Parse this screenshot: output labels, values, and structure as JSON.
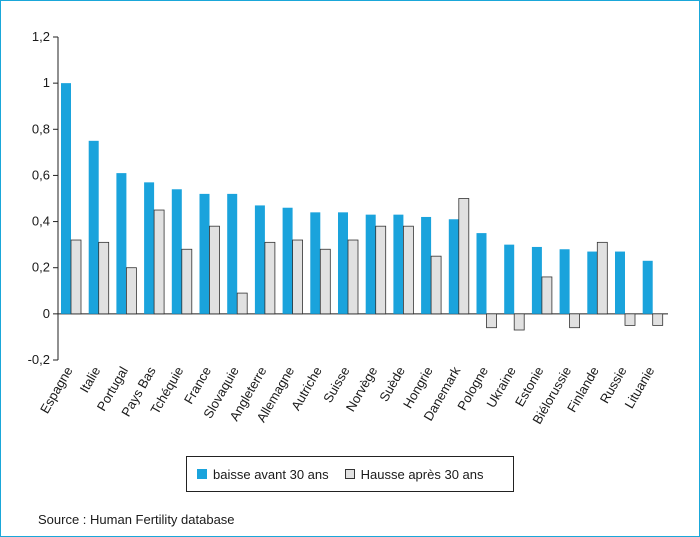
{
  "colors": {
    "series_a": "#1aa3dc",
    "series_b": "#e1e1e1",
    "series_b_stroke": "#333333",
    "frame": "#1aa7d9"
  },
  "chart_data": {
    "type": "bar",
    "title": "",
    "xlabel": "",
    "ylabel": "",
    "ylim": [
      -0.2,
      1.2
    ],
    "yticks": [
      -0.2,
      0,
      0.2,
      0.4,
      0.6,
      0.8,
      1,
      1.2
    ],
    "ytick_labels": [
      "-0,2",
      "0",
      "0,2",
      "0,4",
      "0,6",
      "0,8",
      "1",
      "1,2"
    ],
    "grid": false,
    "legend_position": "bottom-center",
    "categories": [
      "Espagne",
      "Italie",
      "Portugal",
      "Pays Bas",
      "Tchéquie",
      "France",
      "Slovaquie",
      "Angleterre",
      "Allemagne",
      "Autriche",
      "Suisse",
      "Norvège",
      "Suède",
      "Hongrie",
      "Danemark",
      "Pologne",
      "Ukraine",
      "Estonie",
      "Biélorussie",
      "Finlande",
      "Russie",
      "Lituanie"
    ],
    "series": [
      {
        "name": "baisse avant 30 ans",
        "values": [
          1.0,
          0.75,
          0.61,
          0.57,
          0.54,
          0.52,
          0.52,
          0.47,
          0.46,
          0.44,
          0.44,
          0.43,
          0.43,
          0.42,
          0.41,
          0.35,
          0.3,
          0.29,
          0.28,
          0.27,
          0.27,
          0.23
        ]
      },
      {
        "name": "Hausse après 30 ans",
        "values": [
          0.32,
          0.31,
          0.2,
          0.45,
          0.28,
          0.38,
          0.09,
          0.31,
          0.32,
          0.28,
          0.32,
          0.38,
          0.38,
          0.25,
          0.5,
          -0.06,
          -0.07,
          0.16,
          -0.06,
          0.31,
          -0.05,
          -0.05
        ]
      }
    ]
  },
  "legend": {
    "item_a": "baisse avant 30 ans",
    "item_b": "Hausse après 30 ans"
  },
  "source": "Source : Human Fertility database"
}
